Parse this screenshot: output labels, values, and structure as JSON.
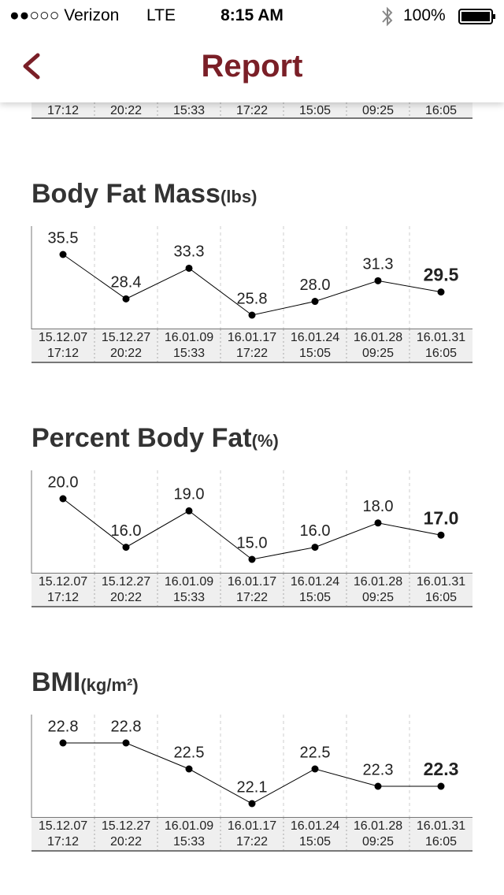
{
  "status_bar": {
    "carrier": "●●○○○ Verizon",
    "network": "LTE",
    "time": "8:15 AM",
    "battery": "100%"
  },
  "header": {
    "title": "Report"
  },
  "scrolled_labels": [
    "17:12",
    "20:22",
    "15:33",
    "17:22",
    "15:05",
    "09:25",
    "16:05"
  ],
  "chart_data": [
    {
      "type": "line",
      "title": "Body Fat Mass",
      "unit": "(lbs)",
      "categories": [
        "15.12.07 17:12",
        "15.12.27 20:22",
        "16.01.09 15:33",
        "16.01.17 17:22",
        "16.01.24 15:05",
        "16.01.28 09:25",
        "16.01.31 16:05"
      ],
      "series": [
        {
          "color": "#000000",
          "values": [
            35.5,
            28.4,
            33.3,
            25.8,
            28.0,
            31.3,
            29.5
          ],
          "value_labels": [
            "35.5",
            "28.4",
            "33.3",
            "25.8",
            "28.0",
            "31.3",
            "29.5"
          ]
        }
      ],
      "highlight_last": true
    },
    {
      "type": "line",
      "title": "Percent Body Fat",
      "unit": "(%)",
      "categories": [
        "15.12.07 17:12",
        "15.12.27 20:22",
        "16.01.09 15:33",
        "16.01.17 17:22",
        "16.01.24 15:05",
        "16.01.28 09:25",
        "16.01.31 16:05"
      ],
      "series": [
        {
          "color": "#000000",
          "values": [
            20.0,
            16.0,
            19.0,
            15.0,
            16.0,
            18.0,
            17.0
          ],
          "value_labels": [
            "20.0",
            "16.0",
            "19.0",
            "15.0",
            "16.0",
            "18.0",
            "17.0"
          ]
        }
      ],
      "highlight_last": true
    },
    {
      "type": "line",
      "title": "BMI",
      "unit": "(kg/m²)",
      "categories": [
        "15.12.07 17:12",
        "15.12.27 20:22",
        "16.01.09 15:33",
        "16.01.17 17:22",
        "16.01.24 15:05",
        "16.01.28 09:25",
        "16.01.31 16:05"
      ],
      "series": [
        {
          "color": "#000000",
          "values": [
            22.8,
            22.8,
            22.5,
            22.1,
            22.5,
            22.3,
            22.3
          ],
          "value_labels": [
            "22.8",
            "22.8",
            "22.5",
            "22.1",
            "22.5",
            "22.3",
            "22.3"
          ]
        }
      ],
      "highlight_last": true
    }
  ]
}
